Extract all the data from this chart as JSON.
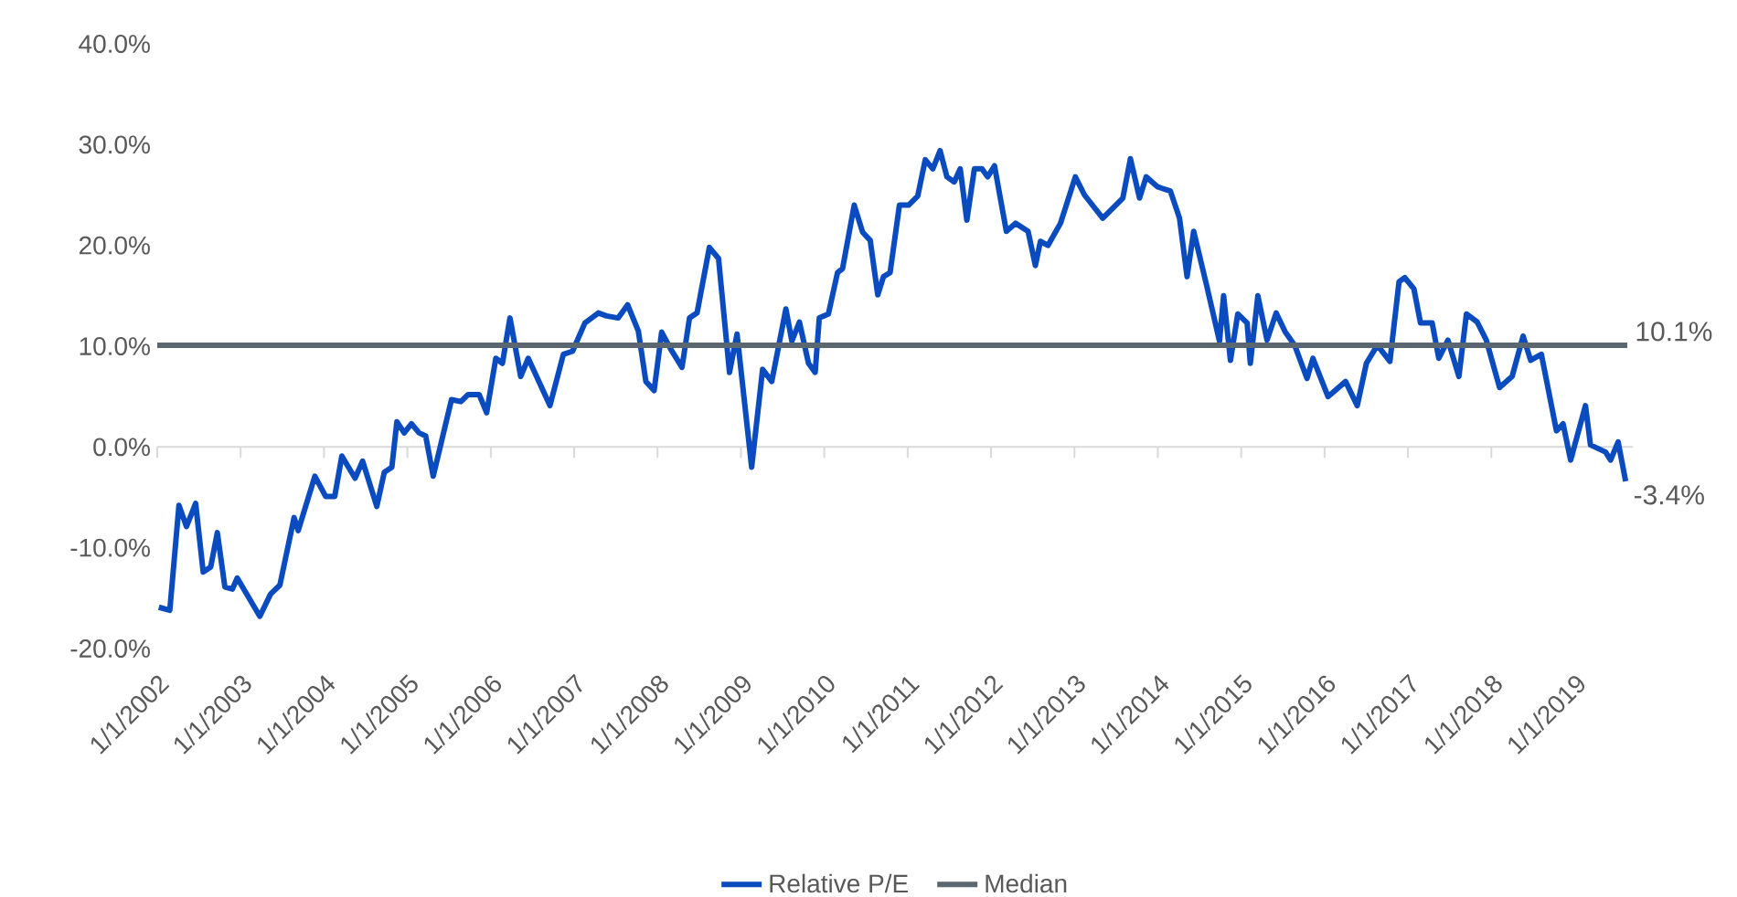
{
  "chart_data": {
    "type": "line",
    "x": [
      "2002-01-08",
      "2002-02-25",
      "2002-04-06",
      "2002-05-09",
      "2002-06-18",
      "2002-07-21",
      "2002-08-23",
      "2002-09-21",
      "2002-10-24",
      "2002-11-26",
      "2002-12-17",
      "2003-03-26",
      "2003-05-12",
      "2003-06-22",
      "2003-08-23",
      "2003-09-10",
      "2003-11-22",
      "2004-01-08",
      "2004-02-17",
      "2004-03-19",
      "2004-05-16",
      "2004-06-18",
      "2004-08-19",
      "2004-09-21",
      "2004-10-24",
      "2004-11-15",
      "2004-12-17",
      "2005-01-19",
      "2005-02-21",
      "2005-03-22",
      "2005-04-24",
      "2005-07-13",
      "2005-08-23",
      "2005-09-24",
      "2005-11-11",
      "2005-12-14",
      "2006-01-23",
      "2006-02-21",
      "2006-03-26",
      "2006-05-12",
      "2006-06-14",
      "2006-09-17",
      "2006-11-15",
      "2006-12-25",
      "2007-02-17",
      "2007-04-17",
      "2007-05-23",
      "2007-07-13",
      "2007-08-23",
      "2007-10-09",
      "2007-11-11",
      "2007-12-17",
      "2008-01-19",
      "2008-02-28",
      "2008-04-17",
      "2008-05-20",
      "2008-06-22",
      "2008-08-15",
      "2008-09-24",
      "2008-11-11",
      "2008-12-14",
      "2009-02-17",
      "2009-04-06",
      "2009-05-16",
      "2009-07-17",
      "2009-08-12",
      "2009-09-14",
      "2009-10-24",
      "2009-11-22",
      "2009-12-10",
      "2010-01-19",
      "2010-02-28",
      "2010-03-22",
      "2010-05-12",
      "2010-06-18",
      "2010-07-21",
      "2010-08-23",
      "2010-09-17",
      "2010-10-16",
      "2010-11-26",
      "2011-01-05",
      "2011-02-14",
      "2011-03-19",
      "2011-04-21",
      "2011-05-23",
      "2011-06-22",
      "2011-07-24",
      "2011-08-19",
      "2011-09-17",
      "2011-10-20",
      "2011-11-22",
      "2011-12-17",
      "2012-01-16",
      "2012-03-08",
      "2012-04-17",
      "2012-06-11",
      "2012-07-13",
      "2012-08-04",
      "2012-09-06",
      "2012-10-31",
      "2013-01-05",
      "2013-02-14",
      "2013-05-05",
      "2013-08-01",
      "2013-09-03",
      "2013-10-13",
      "2013-11-11",
      "2014-01-01",
      "2014-02-25",
      "2014-04-06",
      "2014-05-09",
      "2014-06-07",
      "2014-08-04",
      "2014-09-28",
      "2014-10-16",
      "2014-11-15",
      "2014-12-17",
      "2015-01-27",
      "2015-02-10",
      "2015-03-15",
      "2015-04-24",
      "2015-06-03",
      "2015-07-13",
      "2015-08-23",
      "2015-10-16",
      "2015-11-11",
      "2016-01-16",
      "2016-04-02",
      "2016-05-23",
      "2016-07-02",
      "2016-08-19",
      "2016-10-13",
      "2016-11-22",
      "2016-12-17",
      "2017-01-27",
      "2017-02-25",
      "2017-04-17",
      "2017-05-16",
      "2017-06-25",
      "2017-08-12",
      "2017-09-14",
      "2017-10-31",
      "2017-12-10",
      "2018-02-06",
      "2018-04-02",
      "2018-05-20",
      "2018-06-22",
      "2018-08-08",
      "2018-10-13",
      "2018-11-11",
      "2018-12-14",
      "2019-02-17",
      "2019-03-11",
      "2019-05-16",
      "2019-06-07",
      "2019-07-10",
      "2019-08-12"
    ],
    "series": [
      {
        "name": "Relative P/E",
        "color": "#0a4bbf",
        "values": [
          -15.9,
          -16.2,
          -5.8,
          -7.9,
          -5.6,
          -12.4,
          -11.9,
          -8.5,
          -13.9,
          -14.1,
          -13.0,
          -16.8,
          -14.6,
          -13.7,
          -7.0,
          -8.3,
          -2.9,
          -4.9,
          -4.9,
          -0.9,
          -3.1,
          -1.4,
          -5.9,
          -2.5,
          -2.0,
          2.5,
          1.4,
          2.3,
          1.4,
          1.1,
          -2.9,
          4.7,
          4.5,
          5.2,
          5.2,
          3.4,
          8.8,
          8.3,
          12.8,
          7.0,
          8.8,
          4.1,
          9.2,
          9.5,
          12.3,
          13.3,
          13.0,
          12.8,
          14.1,
          11.5,
          6.5,
          5.6,
          11.4,
          9.7,
          7.9,
          12.8,
          13.3,
          19.8,
          18.7,
          7.4,
          11.2,
          -2.0,
          7.7,
          6.5,
          13.7,
          10.5,
          12.4,
          8.3,
          7.4,
          12.8,
          13.2,
          17.3,
          17.7,
          24.0,
          21.3,
          20.5,
          15.1,
          16.9,
          17.3,
          24.0,
          24.0,
          24.9,
          28.5,
          27.6,
          29.4,
          26.8,
          26.3,
          27.6,
          22.5,
          27.6,
          27.6,
          26.8,
          27.9,
          21.4,
          22.2,
          21.4,
          18.0,
          20.4,
          20.0,
          22.2,
          26.8,
          25.0,
          22.7,
          24.7,
          28.6,
          24.7,
          26.8,
          25.8,
          25.4,
          22.7,
          16.9,
          21.4,
          15.9,
          10.5,
          15.0,
          8.6,
          13.2,
          12.3,
          8.3,
          15.0,
          10.6,
          13.3,
          11.4,
          10.1,
          6.8,
          8.8,
          5.0,
          6.5,
          4.1,
          8.3,
          10.1,
          8.5,
          16.4,
          16.8,
          15.7,
          12.3,
          12.3,
          8.8,
          10.6,
          7.0,
          13.2,
          12.4,
          10.6,
          5.9,
          7.0,
          11.0,
          8.6,
          9.2,
          1.6,
          2.3,
          -1.3,
          4.1,
          0.2,
          -0.5,
          -1.3,
          0.5,
          -3.4
        ]
      },
      {
        "name": "Median",
        "color": "#5b6770",
        "x": [
          "2002-01-01",
          "2019-08-19"
        ],
        "values": [
          10.1,
          10.1
        ]
      }
    ],
    "xlim": [
      "2002-01-01",
      "2019-09-13"
    ],
    "xticks": [
      {
        "value": "2002-01-01",
        "label": "1/1/2002"
      },
      {
        "value": "2003-01-01",
        "label": "1/1/2003"
      },
      {
        "value": "2004-01-01",
        "label": "1/1/2004"
      },
      {
        "value": "2005-01-01",
        "label": "1/1/2005"
      },
      {
        "value": "2006-01-01",
        "label": "1/1/2006"
      },
      {
        "value": "2007-01-01",
        "label": "1/1/2007"
      },
      {
        "value": "2008-01-01",
        "label": "1/1/2008"
      },
      {
        "value": "2009-01-01",
        "label": "1/1/2009"
      },
      {
        "value": "2010-01-01",
        "label": "1/1/2010"
      },
      {
        "value": "2011-01-01",
        "label": "1/1/2011"
      },
      {
        "value": "2012-01-01",
        "label": "1/1/2012"
      },
      {
        "value": "2013-01-01",
        "label": "1/1/2013"
      },
      {
        "value": "2014-01-01",
        "label": "1/1/2014"
      },
      {
        "value": "2015-01-01",
        "label": "1/1/2015"
      },
      {
        "value": "2016-01-01",
        "label": "1/1/2016"
      },
      {
        "value": "2017-01-01",
        "label": "1/1/2017"
      },
      {
        "value": "2018-01-01",
        "label": "1/1/2018"
      },
      {
        "value": "2019-01-01",
        "label": "1/1/2019"
      }
    ],
    "ylim": [
      -20,
      40
    ],
    "yticks": [
      {
        "value": -20,
        "label": "-20.0%"
      },
      {
        "value": -10,
        "label": "-10.0%"
      },
      {
        "value": 0,
        "label": "0.0%"
      },
      {
        "value": 10,
        "label": "10.0%"
      },
      {
        "value": 20,
        "label": "20.0%"
      },
      {
        "value": 30,
        "label": "30.0%"
      },
      {
        "value": 40,
        "label": "40.0%"
      }
    ],
    "annotations": [
      {
        "text": "10.1%",
        "x": "2019-08-19",
        "y": 10.1
      },
      {
        "text": "-3.4%",
        "x": "2019-08-12",
        "y": -3.4
      }
    ],
    "legend": "bottom",
    "line_style": "solid"
  }
}
